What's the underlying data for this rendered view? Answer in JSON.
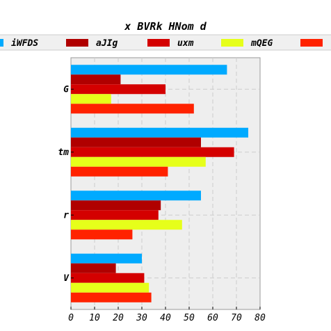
{
  "chart_data": {
    "type": "bar",
    "orientation": "horizontal",
    "title": "x BVRk HNom d",
    "categories": [
      "G",
      "tm",
      "r",
      "V"
    ],
    "xlim": [
      0,
      80
    ],
    "xticks": [
      0,
      10,
      20,
      30,
      40,
      50,
      60,
      70,
      80
    ],
    "grid": true,
    "legend_position": "top",
    "series": [
      {
        "name": "iWFDS",
        "color": "#00aaff",
        "values": [
          66,
          75,
          55,
          30
        ]
      },
      {
        "name": "aJIg",
        "color": "#b00000",
        "values": [
          21,
          55,
          38,
          19
        ]
      },
      {
        "name": "uxm",
        "color": "#d40000",
        "values": [
          40,
          69,
          37,
          31
        ]
      },
      {
        "name": "mQEG",
        "color": "#e6ff1a",
        "values": [
          17,
          57,
          47,
          33
        ]
      },
      {
        "name": "",
        "color": "#ff2200",
        "values": [
          52,
          41,
          26,
          34
        ]
      }
    ]
  }
}
